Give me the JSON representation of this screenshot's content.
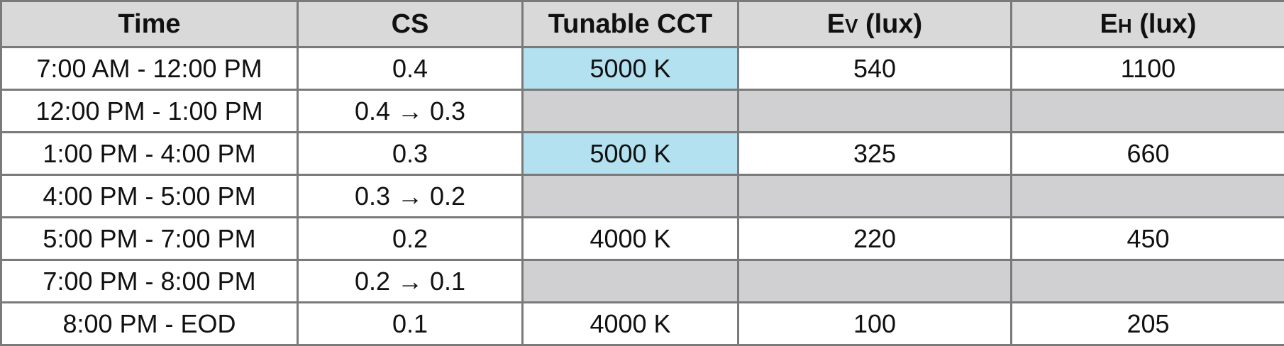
{
  "headers": {
    "time": "Time",
    "cs": "CS",
    "cct": "Tunable CCT",
    "ev_main": "E",
    "ev_sub": "V",
    "ev_unit": " (lux)",
    "eh_main": "E",
    "eh_sub": "H",
    "eh_unit": " (lux)"
  },
  "rows": [
    {
      "time": "7:00 AM - 12:00 PM",
      "cs": "0.4",
      "cct": "5000 K",
      "ev": "540",
      "eh": "1100"
    },
    {
      "time": "12:00 PM - 1:00 PM",
      "cs": "0.4 → 0.3",
      "cct": "",
      "ev": "",
      "eh": ""
    },
    {
      "time": "1:00 PM - 4:00 PM",
      "cs": "0.3",
      "cct": "5000 K",
      "ev": "325",
      "eh": "660"
    },
    {
      "time": "4:00 PM - 5:00 PM",
      "cs": "0.3 → 0.2",
      "cct": "",
      "ev": "",
      "eh": ""
    },
    {
      "time": "5:00 PM - 7:00 PM",
      "cs": "0.2",
      "cct": "4000 K",
      "ev": "220",
      "eh": "450"
    },
    {
      "time": "7:00 PM - 8:00 PM",
      "cs": "0.2 → 0.1",
      "cct": "",
      "ev": "",
      "eh": ""
    },
    {
      "time": "8:00 PM - EOD",
      "cs": "0.1",
      "cct": "4000 K",
      "ev": "100",
      "eh": "205"
    }
  ],
  "colors": {
    "header_bg": "#d9d9d9",
    "cool_cct_bg": "#b3e1f0",
    "transition_bg": "#d0cfd1",
    "border": "#7a7a7a"
  }
}
